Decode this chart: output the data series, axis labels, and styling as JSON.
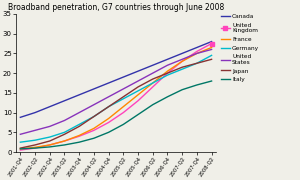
{
  "title": "Broadband penetration, G7 countries through June 2008",
  "ylim": [
    0,
    35
  ],
  "x_labels": [
    "2001-Q4",
    "2002-Q2",
    "2002-Q4",
    "2003-Q2",
    "2003-Q4",
    "2004-Q2",
    "2004-Q4",
    "2005-Q2",
    "2005-Q4",
    "2006-Q2",
    "2006-Q4",
    "2007-Q2",
    "2007-Q4",
    "2008-Q2"
  ],
  "series": [
    {
      "name": "Canada",
      "color": "#3333aa",
      "linewidth": 1.0,
      "marker": null,
      "data": [
        8.8,
        10.0,
        11.5,
        13.0,
        14.5,
        16.0,
        17.5,
        19.0,
        20.5,
        22.0,
        23.5,
        25.0,
        26.5,
        28.0
      ]
    },
    {
      "name": "United\nKingdom",
      "color": "#ff44bb",
      "linewidth": 1.0,
      "marker": "s",
      "markersize": 3,
      "data": [
        0.5,
        1.0,
        1.8,
        2.8,
        4.0,
        5.5,
        7.5,
        10.0,
        13.0,
        16.5,
        20.0,
        23.0,
        25.5,
        27.5
      ]
    },
    {
      "name": "France",
      "color": "#ff8800",
      "linewidth": 1.0,
      "marker": null,
      "data": [
        0.8,
        1.2,
        1.8,
        2.8,
        4.2,
        6.0,
        8.5,
        11.5,
        14.5,
        17.5,
        20.5,
        23.0,
        25.0,
        26.5
      ]
    },
    {
      "name": "Germany",
      "color": "#00bbcc",
      "linewidth": 1.0,
      "marker": null,
      "data": [
        2.5,
        3.0,
        3.8,
        5.0,
        7.0,
        9.0,
        11.5,
        13.5,
        15.5,
        17.5,
        19.5,
        21.0,
        22.5,
        24.5
      ]
    },
    {
      "name": "United\nStates",
      "color": "#8833bb",
      "linewidth": 1.0,
      "marker": null,
      "data": [
        4.5,
        5.5,
        6.5,
        8.0,
        10.0,
        12.0,
        14.0,
        16.0,
        18.0,
        20.0,
        22.0,
        23.5,
        25.0,
        26.0
      ]
    },
    {
      "name": "Japan",
      "color": "#883333",
      "linewidth": 1.0,
      "marker": null,
      "data": [
        1.0,
        1.8,
        2.8,
        4.5,
        6.5,
        9.0,
        11.5,
        14.0,
        16.5,
        18.5,
        20.0,
        21.5,
        22.5,
        23.5
      ]
    },
    {
      "name": "Italy",
      "color": "#007766",
      "linewidth": 1.0,
      "marker": null,
      "data": [
        0.8,
        1.0,
        1.3,
        1.8,
        2.5,
        3.5,
        5.0,
        7.0,
        9.5,
        12.0,
        14.0,
        15.8,
        17.0,
        18.0
      ]
    }
  ]
}
